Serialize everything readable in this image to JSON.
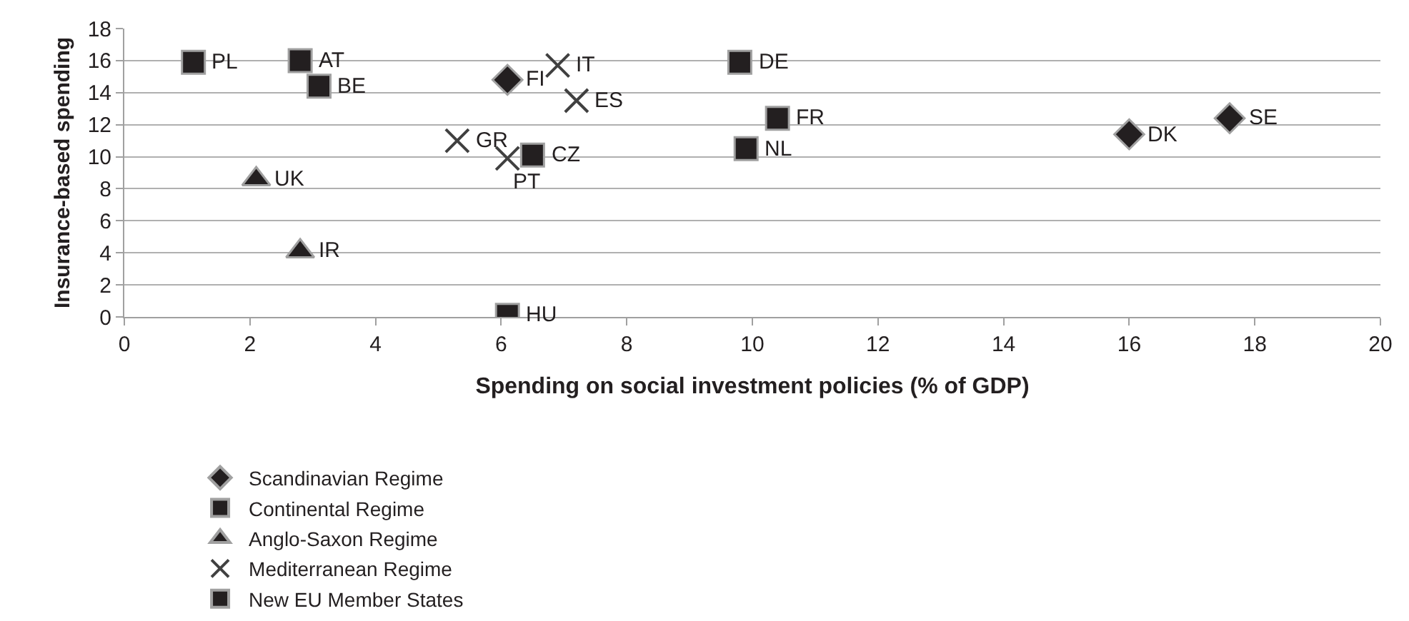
{
  "chart_data": {
    "type": "scatter",
    "xlabel": "Spending on social investment policies (% of GDP)",
    "ylabel": "Insurance-based spending",
    "xlim": [
      0,
      20
    ],
    "xticks": [
      0,
      2,
      4,
      6,
      8,
      10,
      12,
      14,
      16,
      18,
      20
    ],
    "ylim": [
      0,
      18
    ],
    "yticks": [
      0,
      2,
      4,
      6,
      8,
      10,
      12,
      14,
      16,
      18
    ],
    "grid": "y",
    "legend": "bottom",
    "series": [
      {
        "name": "Scandinavian Regime",
        "color": "#231f20",
        "marker": "diamond",
        "x": [
          6.1,
          16.0,
          17.6
        ],
        "values": [
          14.8,
          11.4,
          12.4
        ]
      },
      {
        "name": "Continental Regime",
        "color": "#231f20",
        "marker": "square",
        "x": [
          2.8,
          3.1,
          9.8,
          10.4,
          9.9
        ],
        "values": [
          16.0,
          14.4,
          15.9,
          12.4,
          10.5
        ]
      },
      {
        "name": "Anglo-Saxon Regime",
        "color": "#231f20",
        "marker": "triangle",
        "x": [
          2.1,
          2.8
        ],
        "values": [
          8.6,
          4.1
        ]
      },
      {
        "name": "Mediterranean Regime",
        "color": "#404040",
        "marker": "cross",
        "x": [
          5.3,
          6.1,
          6.9,
          7.2
        ],
        "values": [
          11.0,
          9.9,
          15.7,
          13.5
        ]
      },
      {
        "name": "New EU Member States",
        "color": "#231f20",
        "marker": "square",
        "x": [
          1.1,
          6.5,
          6.1
        ],
        "values": [
          15.9,
          10.1,
          0.1
        ]
      }
    ],
    "annotations": [
      {
        "text": "FI",
        "x": 6.1,
        "y": 14.8
      },
      {
        "text": "DK",
        "x": 16.0,
        "y": 11.4
      },
      {
        "text": "SE",
        "x": 17.6,
        "y": 12.4
      },
      {
        "text": "AT",
        "x": 2.8,
        "y": 16.0
      },
      {
        "text": "BE",
        "x": 3.1,
        "y": 14.4
      },
      {
        "text": "DE",
        "x": 9.8,
        "y": 15.9
      },
      {
        "text": "FR",
        "x": 10.4,
        "y": 12.4
      },
      {
        "text": "NL",
        "x": 9.9,
        "y": 10.5
      },
      {
        "text": "UK",
        "x": 2.1,
        "y": 8.6
      },
      {
        "text": "IR",
        "x": 2.8,
        "y": 4.1
      },
      {
        "text": "GR",
        "x": 5.3,
        "y": 11.0
      },
      {
        "text": "PT",
        "x": 6.1,
        "y": 9.9
      },
      {
        "text": "IT",
        "x": 6.9,
        "y": 15.7
      },
      {
        "text": "ES",
        "x": 7.2,
        "y": 13.5
      },
      {
        "text": "PL",
        "x": 1.1,
        "y": 15.9
      },
      {
        "text": "CZ",
        "x": 6.5,
        "y": 10.1
      },
      {
        "text": "HU",
        "x": 6.1,
        "y": 0.1
      }
    ]
  }
}
